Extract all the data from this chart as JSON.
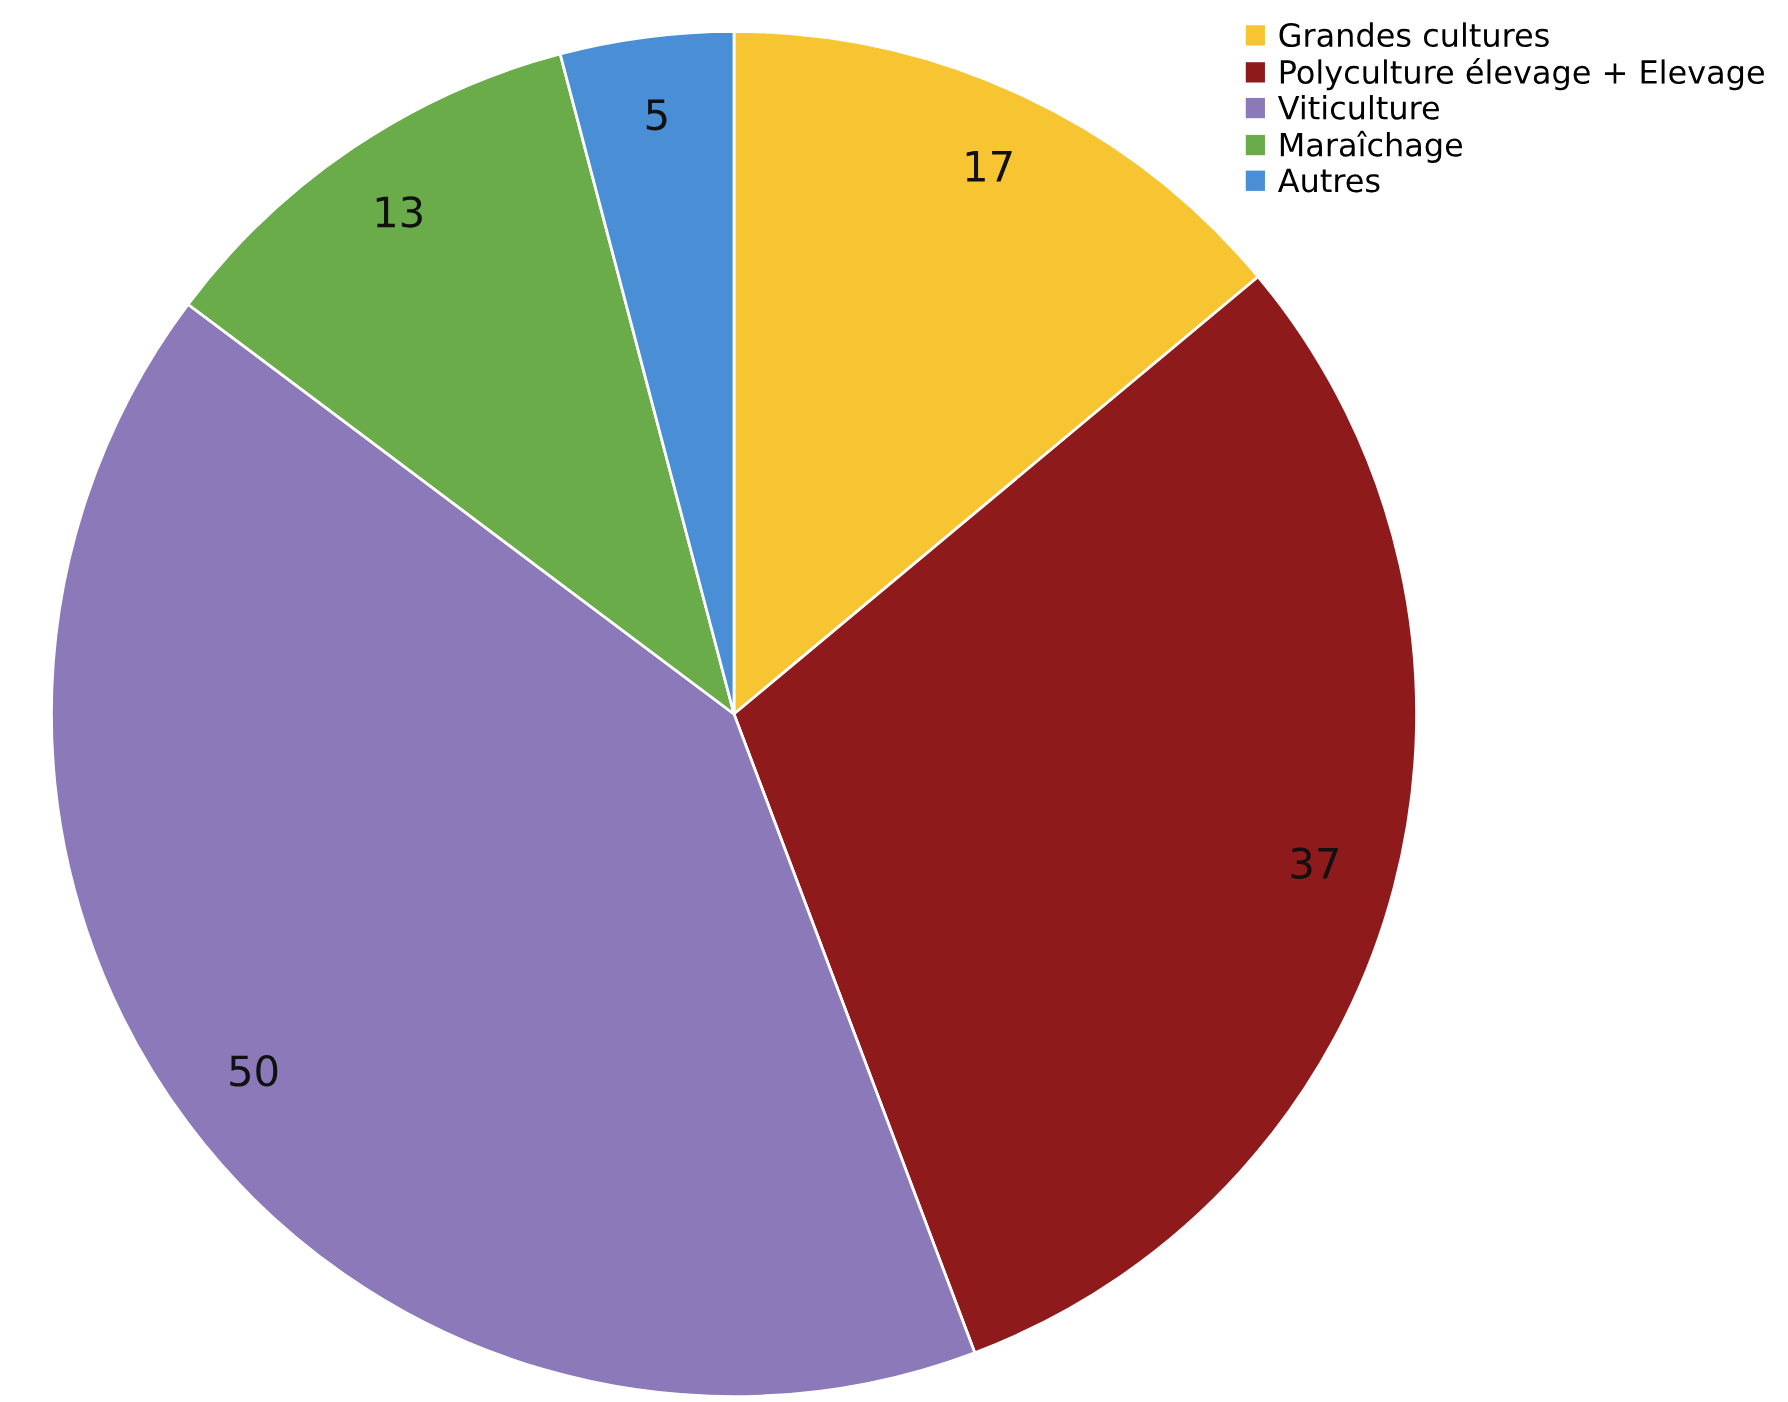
{
  "chart_data": {
    "type": "pie",
    "categories": [
      "Grandes cultures",
      "Polyculture élevage + Elevage",
      "Viticulture",
      "Maraîchage",
      "Autres"
    ],
    "values": [
      17,
      37,
      50,
      13,
      5
    ],
    "colors": [
      "#f7c531",
      "#8e1a1c",
      "#8b79b9",
      "#6aab4a",
      "#4a8fd6"
    ],
    "data_labels": true,
    "legend": "top right"
  }
}
